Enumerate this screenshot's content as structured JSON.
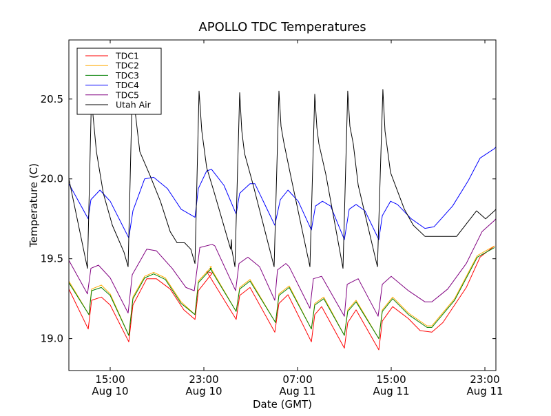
{
  "chart_data": {
    "type": "line",
    "title": "APOLLO TDC Temperatures",
    "xlabel": "Date (GMT)",
    "ylabel": "Temperature (C)",
    "x_units": "hours since Aug 10 00:00 GMT",
    "xlim": [
      11.47,
      47.94
    ],
    "ylim": [
      18.8,
      20.87
    ],
    "grid": false,
    "legend_position": "top-left",
    "xticks": [
      {
        "value": 15,
        "label_time": "15:00",
        "label_date": "Aug 10"
      },
      {
        "value": 23,
        "label_time": "23:00",
        "label_date": "Aug 10"
      },
      {
        "value": 31,
        "label_time": "07:00",
        "label_date": "Aug 11"
      },
      {
        "value": 39,
        "label_time": "15:00",
        "label_date": "Aug 11"
      },
      {
        "value": 47,
        "label_time": "23:00",
        "label_date": "Aug 11"
      }
    ],
    "yticks": [
      {
        "value": 19.0,
        "label": "19.0"
      },
      {
        "value": 19.5,
        "label": "19.5"
      },
      {
        "value": 20.0,
        "label": "20.0"
      },
      {
        "value": 20.5,
        "label": "20.5"
      }
    ],
    "series": [
      {
        "name": "TDC1",
        "color": "#ff0000",
        "points": [
          [
            11.47,
            19.31
          ],
          [
            13.12,
            19.06
          ],
          [
            13.41,
            19.24
          ],
          [
            14.24,
            19.26
          ],
          [
            15.0,
            19.21
          ],
          [
            16.59,
            18.98
          ],
          [
            16.94,
            19.21
          ],
          [
            18.12,
            19.375
          ],
          [
            18.94,
            19.375
          ],
          [
            20.12,
            19.31
          ],
          [
            21.29,
            19.18
          ],
          [
            22.24,
            19.12
          ],
          [
            22.53,
            19.3
          ],
          [
            23.71,
            19.41
          ],
          [
            23.24,
            19.42
          ],
          [
            25.76,
            19.12
          ],
          [
            26.06,
            19.27
          ],
          [
            26.94,
            19.32
          ],
          [
            29.06,
            19.04
          ],
          [
            29.41,
            19.22
          ],
          [
            30.18,
            19.275
          ],
          [
            32.18,
            18.98
          ],
          [
            32.47,
            19.15
          ],
          [
            33.06,
            19.2
          ],
          [
            35.0,
            18.94
          ],
          [
            35.29,
            19.1
          ],
          [
            36.0,
            19.18
          ],
          [
            37.94,
            18.93
          ],
          [
            38.24,
            19.11
          ],
          [
            39.12,
            19.2
          ],
          [
            40.47,
            19.125
          ],
          [
            41.47,
            19.05
          ],
          [
            42.47,
            19.04
          ],
          [
            43.41,
            19.1
          ],
          [
            45.41,
            19.32
          ],
          [
            46.59,
            19.51
          ],
          [
            47.82,
            19.58
          ]
        ]
      },
      {
        "name": "TDC2",
        "color": "#ffaa00",
        "points": [
          [
            11.47,
            19.36
          ],
          [
            13.18,
            19.15
          ],
          [
            13.41,
            19.31
          ],
          [
            14.24,
            19.335
          ],
          [
            15.0,
            19.28
          ],
          [
            16.59,
            19.02
          ],
          [
            16.94,
            19.26
          ],
          [
            17.94,
            19.39
          ],
          [
            18.71,
            19.415
          ],
          [
            19.71,
            19.38
          ],
          [
            21.06,
            19.23
          ],
          [
            22.24,
            19.15
          ],
          [
            22.53,
            19.36
          ],
          [
            23.65,
            19.45
          ],
          [
            23.53,
            19.45
          ],
          [
            25.76,
            19.17
          ],
          [
            26.06,
            19.32
          ],
          [
            26.94,
            19.37
          ],
          [
            29.12,
            19.1
          ],
          [
            29.41,
            19.28
          ],
          [
            30.29,
            19.33
          ],
          [
            32.18,
            19.06
          ],
          [
            32.47,
            19.22
          ],
          [
            33.24,
            19.26
          ],
          [
            35.0,
            19.02
          ],
          [
            35.29,
            19.18
          ],
          [
            36.0,
            19.24
          ],
          [
            37.94,
            19.0
          ],
          [
            38.24,
            19.18
          ],
          [
            39.12,
            19.26
          ],
          [
            40.47,
            19.16
          ],
          [
            42.06,
            19.08
          ],
          [
            42.47,
            19.08
          ],
          [
            44.41,
            19.25
          ],
          [
            46.35,
            19.52
          ],
          [
            47.82,
            19.58
          ]
        ]
      },
      {
        "name": "TDC3",
        "color": "#008000",
        "points": [
          [
            11.47,
            19.35
          ],
          [
            13.18,
            19.15
          ],
          [
            13.41,
            19.3
          ],
          [
            14.24,
            19.32
          ],
          [
            15.0,
            19.27
          ],
          [
            16.59,
            19.02
          ],
          [
            16.94,
            19.25
          ],
          [
            17.94,
            19.38
          ],
          [
            18.71,
            19.405
          ],
          [
            19.71,
            19.37
          ],
          [
            21.06,
            19.22
          ],
          [
            22.24,
            19.15
          ],
          [
            22.53,
            19.35
          ],
          [
            23.65,
            19.44
          ],
          [
            23.53,
            19.44
          ],
          [
            25.76,
            19.17
          ],
          [
            26.06,
            19.31
          ],
          [
            26.94,
            19.36
          ],
          [
            29.12,
            19.1
          ],
          [
            29.41,
            19.27
          ],
          [
            30.29,
            19.32
          ],
          [
            32.18,
            19.06
          ],
          [
            32.47,
            19.21
          ],
          [
            33.24,
            19.25
          ],
          [
            35.0,
            19.02
          ],
          [
            35.29,
            19.17
          ],
          [
            36.0,
            19.23
          ],
          [
            37.94,
            19.0
          ],
          [
            38.24,
            19.17
          ],
          [
            39.12,
            19.25
          ],
          [
            40.47,
            19.15
          ],
          [
            42.06,
            19.07
          ],
          [
            42.47,
            19.07
          ],
          [
            44.41,
            19.24
          ],
          [
            46.35,
            19.51
          ],
          [
            47.82,
            19.57
          ]
        ]
      },
      {
        "name": "TDC4",
        "color": "#0000ff",
        "points": [
          [
            11.47,
            19.97
          ],
          [
            13.12,
            19.75
          ],
          [
            13.35,
            19.87
          ],
          [
            14.12,
            19.93
          ],
          [
            15.0,
            19.86
          ],
          [
            16.59,
            19.63
          ],
          [
            16.94,
            19.8
          ],
          [
            17.94,
            20.0
          ],
          [
            18.71,
            20.01
          ],
          [
            19.88,
            19.94
          ],
          [
            21.06,
            19.81
          ],
          [
            22.24,
            19.76
          ],
          [
            22.53,
            19.94
          ],
          [
            23.24,
            20.05
          ],
          [
            23.65,
            20.06
          ],
          [
            24.71,
            19.96
          ],
          [
            25.76,
            19.78
          ],
          [
            26.06,
            19.91
          ],
          [
            26.94,
            19.97
          ],
          [
            27.35,
            19.97
          ],
          [
            29.06,
            19.71
          ],
          [
            29.53,
            19.87
          ],
          [
            30.18,
            19.93
          ],
          [
            31.06,
            19.86
          ],
          [
            32.18,
            19.68
          ],
          [
            32.53,
            19.83
          ],
          [
            33.12,
            19.86
          ],
          [
            33.82,
            19.83
          ],
          [
            35.0,
            19.62
          ],
          [
            35.41,
            19.81
          ],
          [
            36.0,
            19.84
          ],
          [
            36.76,
            19.8
          ],
          [
            37.94,
            19.62
          ],
          [
            38.24,
            19.77
          ],
          [
            38.94,
            19.86
          ],
          [
            39.53,
            19.84
          ],
          [
            40.71,
            19.75
          ],
          [
            41.88,
            19.69
          ],
          [
            42.65,
            19.7
          ],
          [
            44.24,
            19.83
          ],
          [
            45.59,
            19.99
          ],
          [
            46.59,
            20.13
          ],
          [
            47.82,
            20.19
          ],
          [
            47.94,
            20.2
          ]
        ]
      },
      {
        "name": "TDC5",
        "color": "#800080",
        "points": [
          [
            11.47,
            19.49
          ],
          [
            13.06,
            19.28
          ],
          [
            13.35,
            19.44
          ],
          [
            14.0,
            19.46
          ],
          [
            15.0,
            19.38
          ],
          [
            16.53,
            19.16
          ],
          [
            16.88,
            19.4
          ],
          [
            18.12,
            19.56
          ],
          [
            18.94,
            19.55
          ],
          [
            20.29,
            19.44
          ],
          [
            21.47,
            19.32
          ],
          [
            22.18,
            19.3
          ],
          [
            22.65,
            19.57
          ],
          [
            23.71,
            19.59
          ],
          [
            23.94,
            19.58
          ],
          [
            25.71,
            19.3
          ],
          [
            26.0,
            19.47
          ],
          [
            26.76,
            19.51
          ],
          [
            27.76,
            19.45
          ],
          [
            29.06,
            19.24
          ],
          [
            29.29,
            19.43
          ],
          [
            30.0,
            19.47
          ],
          [
            30.29,
            19.45
          ],
          [
            32.06,
            19.19
          ],
          [
            32.35,
            19.375
          ],
          [
            33.06,
            19.39
          ],
          [
            35.0,
            19.14
          ],
          [
            35.24,
            19.34
          ],
          [
            36.18,
            19.375
          ],
          [
            37.88,
            19.14
          ],
          [
            38.24,
            19.34
          ],
          [
            39.0,
            19.39
          ],
          [
            40.47,
            19.3
          ],
          [
            41.88,
            19.23
          ],
          [
            42.47,
            19.23
          ],
          [
            43.82,
            19.31
          ],
          [
            45.41,
            19.47
          ],
          [
            46.76,
            19.67
          ],
          [
            47.82,
            19.74
          ],
          [
            47.94,
            19.75
          ]
        ]
      },
      {
        "name": "Utah Air",
        "color": "#000000",
        "points": [
          [
            11.47,
            20.0
          ],
          [
            13.06,
            19.44
          ],
          [
            13.41,
            20.55
          ],
          [
            13.53,
            20.4
          ],
          [
            13.82,
            20.17
          ],
          [
            14.41,
            19.91
          ],
          [
            15.18,
            19.71
          ],
          [
            16.18,
            19.54
          ],
          [
            16.53,
            19.45
          ],
          [
            16.88,
            20.55
          ],
          [
            17.18,
            20.39
          ],
          [
            17.53,
            20.17
          ],
          [
            18.35,
            20.03
          ],
          [
            19.29,
            19.86
          ],
          [
            20.12,
            19.67
          ],
          [
            20.71,
            19.6
          ],
          [
            21.35,
            19.6
          ],
          [
            21.88,
            19.56
          ],
          [
            22.24,
            19.47
          ],
          [
            22.59,
            20.55
          ],
          [
            22.82,
            20.3
          ],
          [
            23.24,
            20.07
          ],
          [
            23.82,
            19.93
          ],
          [
            25.29,
            19.56
          ],
          [
            25.35,
            19.62
          ],
          [
            25.38,
            19.56
          ],
          [
            25.65,
            19.45
          ],
          [
            26.06,
            20.54
          ],
          [
            26.24,
            20.3
          ],
          [
            26.47,
            20.16
          ],
          [
            27.18,
            19.97
          ],
          [
            29.0,
            19.45
          ],
          [
            29.41,
            20.55
          ],
          [
            29.59,
            20.33
          ],
          [
            29.82,
            20.23
          ],
          [
            30.47,
            20.0
          ],
          [
            32.06,
            19.45
          ],
          [
            32.47,
            20.53
          ],
          [
            32.65,
            20.32
          ],
          [
            32.82,
            20.22
          ],
          [
            33.41,
            20.03
          ],
          [
            34.88,
            19.44
          ],
          [
            35.29,
            20.55
          ],
          [
            35.47,
            20.33
          ],
          [
            35.76,
            20.22
          ],
          [
            36.18,
            19.96
          ],
          [
            37.82,
            19.45
          ],
          [
            38.29,
            20.56
          ],
          [
            38.47,
            20.3
          ],
          [
            38.94,
            20.04
          ],
          [
            40.12,
            19.81
          ],
          [
            40.88,
            19.71
          ],
          [
            41.88,
            19.64
          ],
          [
            44.59,
            19.64
          ],
          [
            46.29,
            19.8
          ],
          [
            47.06,
            19.75
          ],
          [
            47.82,
            19.8
          ],
          [
            47.94,
            19.81
          ]
        ]
      }
    ]
  }
}
